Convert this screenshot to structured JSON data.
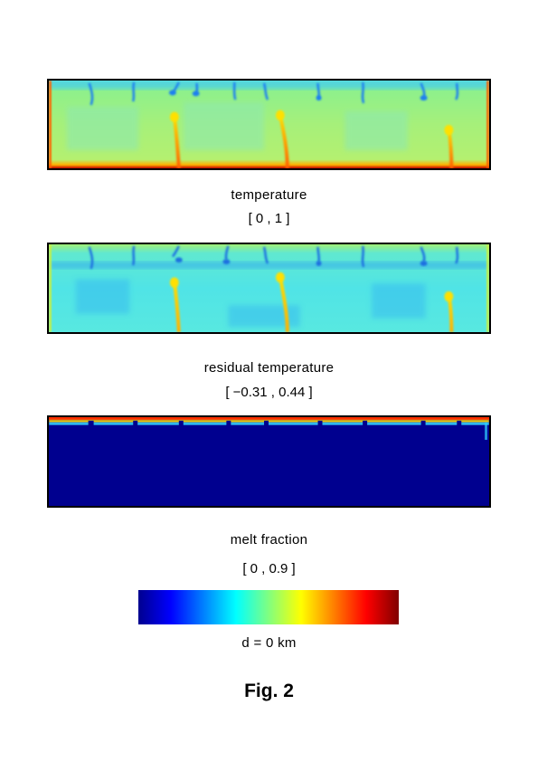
{
  "panels": [
    {
      "caption": "temperature",
      "range": "[ 0 , 1 ]"
    },
    {
      "caption": "residual temperature",
      "range": "[ −0.31 , 0.44 ]"
    },
    {
      "caption": "melt fraction",
      "range": "[ 0 , 0.9 ]"
    }
  ],
  "colorbar": {
    "label": "d = 0 km",
    "colormap": [
      "#00008f",
      "#0000ff",
      "#0080ff",
      "#00ffff",
      "#80ff80",
      "#ffff00",
      "#ff8000",
      "#ff0000",
      "#800000"
    ]
  },
  "figure_label": "Fig. 2",
  "colors": {
    "temperature_interior": "#a6f07a",
    "residual_interior": "#55e8e0",
    "melt_background": "#00008f",
    "plume": "#ffe600",
    "hot_boundary": "#ff2a00",
    "cold_boundary": "#2a7fff"
  }
}
